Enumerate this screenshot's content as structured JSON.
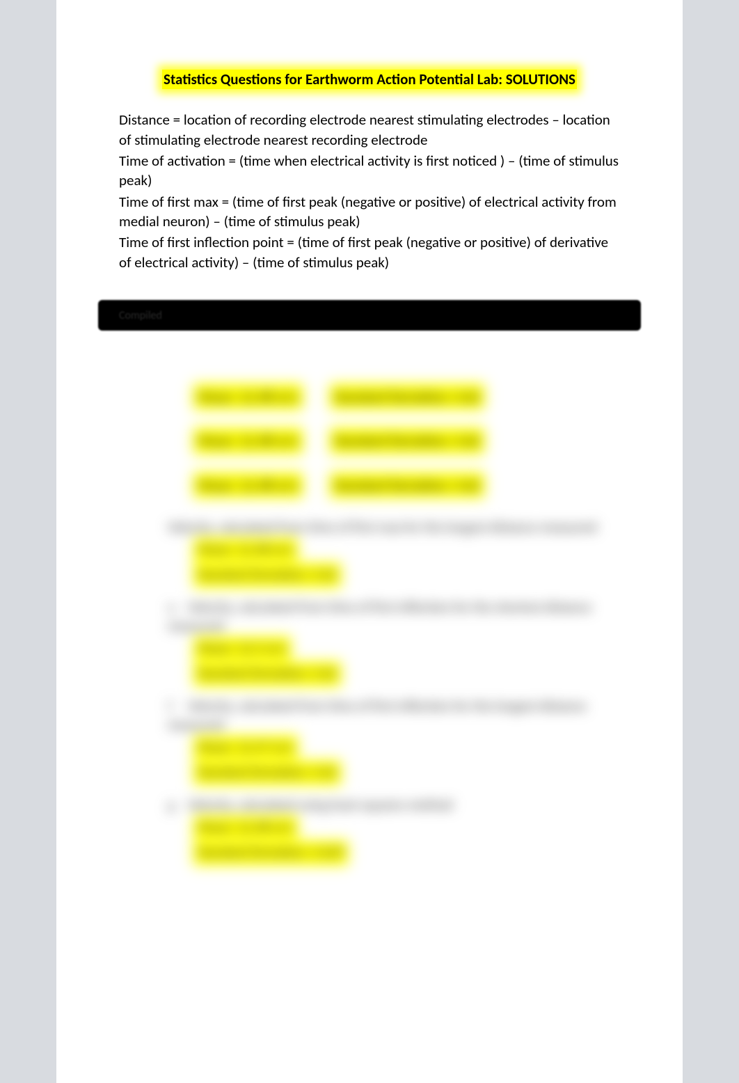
{
  "title": "Statistics Questions for Earthworm Action Potential Lab: SOLUTIONS",
  "definitions": [
    "Distance = location of recording electrode nearest stimulating electrodes – location of stimulating electrode nearest recording electrode",
    "Time of activation = (time when electrical activity is first noticed ) – (time of stimulus peak)",
    "Time of first max = (time of first peak (negative or positive) of electrical activity from medial neuron) – (time of stimulus peak)",
    "Time of first inflection point = (time of first peak (negative or positive) of derivative of electrical activity) – (time of stimulus peak)"
  ],
  "blackbar_text": "Compiled",
  "blurred_pairs": [
    {
      "a": "Mean: 12.48 m/s",
      "b": "Standard Deviation: 4.62"
    },
    {
      "a": "Mean: 12.48 m/s",
      "b": "Standard Deviation: 4.62"
    },
    {
      "a": "Mean: 12.48 m/s",
      "b": "Standard Deviation: 4.62"
    }
  ],
  "blurred_items": [
    {
      "lead": "Velocity, calculated from time of first max for the longest distance measured",
      "subs": [
        "Mean: 12.48 m/s",
        "Standard Deviation: 4.62"
      ]
    },
    {
      "marker": "e.",
      "lead": "Velocity, calculated from time of first inflection for the shortest distance measured",
      "subs": [
        "Mean: 12.5 m/s",
        "Standard Deviation: 4.62"
      ]
    },
    {
      "marker": "f.",
      "lead": "Velocity, calculated from time of first inflection for the longest distance measured",
      "subs": [
        "Mean: 12.47 m/s",
        "Standard Deviation: 4.62"
      ]
    },
    {
      "marker": "g.",
      "lead": "Velocity, calculated using least squares method",
      "subs": [
        "Mean: 12.48 m/s",
        "Standard Deviation: 4.629"
      ]
    }
  ],
  "colors": {
    "page_bg": "#d8dbe0",
    "paper_bg": "#ffffff",
    "highlight": "#ffff00",
    "text": "#000000",
    "blackbar": "#000000"
  }
}
